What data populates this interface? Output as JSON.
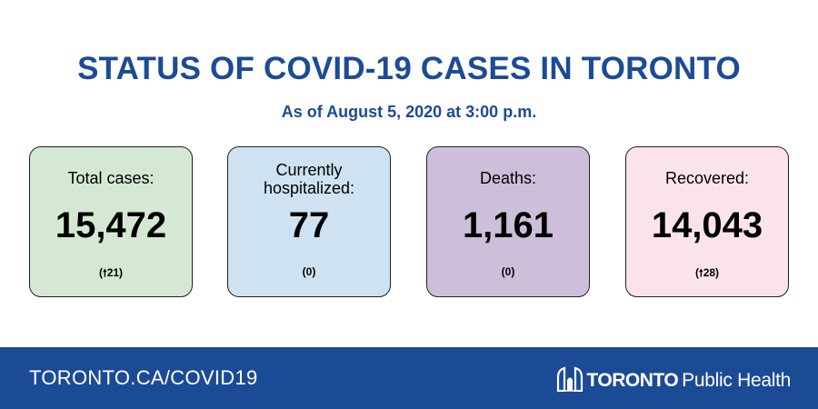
{
  "header": {
    "title": "STATUS OF COVID-19 CASES IN TORONTO",
    "subtitle": "As of August 5, 2020 at 3:00 p.m."
  },
  "cards": [
    {
      "label": "Total cases:",
      "value": "15,472",
      "change_arrow": "🠕",
      "change_value": "21",
      "bg": "#d5e8d4"
    },
    {
      "label_line1": "Currently",
      "label_line2": "hospitalized:",
      "value": "77",
      "change": "(0)",
      "bg": "#cfe2f1"
    },
    {
      "label": "Deaths:",
      "value": "1,161",
      "change": "(0)",
      "bg": "#cdbfda"
    },
    {
      "label": "Recovered:",
      "value": "14,043",
      "change_arrow": "🠕",
      "change_value": "28",
      "bg": "#fbe3ee"
    }
  ],
  "footer": {
    "url": "TORONTO.CA/COVID19",
    "logo_word": "TORONTO",
    "logo_sub": "Public Health",
    "bg": "#1c4b96"
  }
}
